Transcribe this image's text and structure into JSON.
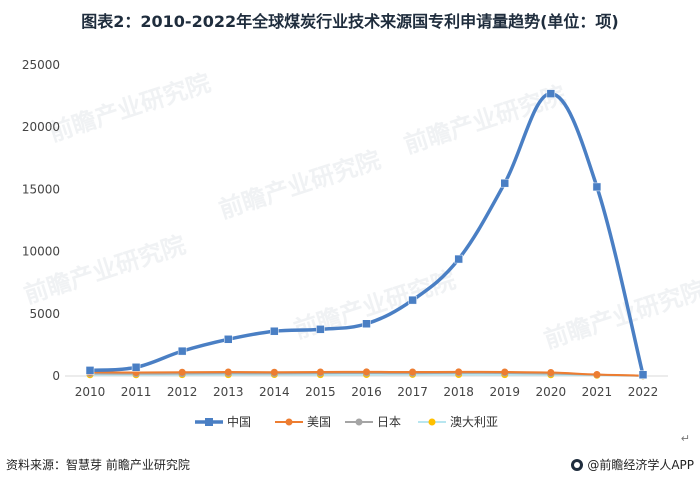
{
  "title": "图表2：2010-2022年全球煤炭行业技术来源国专利申请量趋势(单位：项)",
  "footer": {
    "source": "资料来源：智慧芽 前瞻产业研究院",
    "brand": "@前瞻经济学人APP",
    "return_mark": "↵"
  },
  "watermark": {
    "text": "前瞻产业研究院",
    "icon": "qianzhan-logo-icon"
  },
  "colors": {
    "china": "#4a7fc4",
    "usa": "#ed7d31",
    "japan": "#a5a5a5",
    "australia": "#ffc000",
    "australia_line": "#b8e6f0"
  },
  "chart_data": {
    "type": "line",
    "categories": [
      "2010",
      "2011",
      "2012",
      "2013",
      "2014",
      "2015",
      "2016",
      "2017",
      "2018",
      "2019",
      "2020",
      "2021",
      "2022"
    ],
    "ylim": [
      0,
      25000
    ],
    "yticks": [
      "0",
      "5000",
      "10000",
      "15000",
      "20000",
      "25000"
    ],
    "series": [
      {
        "name": "中国",
        "marker": "square",
        "values": [
          450,
          700,
          2000,
          2950,
          3600,
          3750,
          4200,
          6100,
          9400,
          15500,
          22700,
          15200,
          100
        ]
      },
      {
        "name": "美国",
        "marker": "circle",
        "values": [
          300,
          280,
          300,
          320,
          300,
          320,
          330,
          320,
          330,
          320,
          280,
          120,
          30
        ]
      },
      {
        "name": "日本",
        "marker": "circle",
        "values": [
          200,
          190,
          200,
          220,
          210,
          230,
          240,
          230,
          250,
          240,
          200,
          100,
          20
        ]
      },
      {
        "name": "澳大利亚",
        "marker": "circle",
        "values": [
          100,
          100,
          110,
          110,
          120,
          110,
          120,
          130,
          120,
          110,
          100,
          60,
          10
        ]
      }
    ],
    "legend_position": "bottom",
    "grid": false
  }
}
